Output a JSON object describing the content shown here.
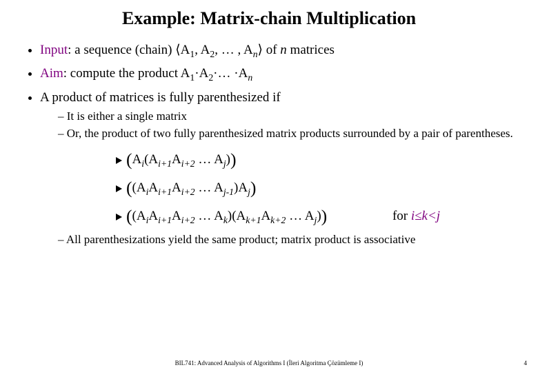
{
  "title_fontsize": 26,
  "body_fontsize": 19,
  "sub_fontsize": 17,
  "math_fontsize": 19,
  "footer_fontsize": 9,
  "keyword_color": "#7f007f",
  "text_color": "#000000",
  "background_color": "#ffffff",
  "title": "Example: Matrix-chain Multiplication",
  "bullets": {
    "b1_kw": "Input",
    "b1_rest_a": ": a sequence (chain) ⟨A",
    "b1_rest_b": ", A",
    "b1_rest_c": ", … , A",
    "b1_rest_d": "⟩ of ",
    "b1_rest_e": " matrices",
    "b2_kw": "Aim",
    "b2_rest_a": ": compute the product A",
    "b2_rest_b": "·A",
    "b2_rest_c": "·… ·A",
    "b3": "A product of matrices is fully parenthesized if",
    "b3_s1": "It is either a single matrix",
    "b3_s2": "Or, the product of two fully parenthesized matrix products surrounded by a pair of parentheses.",
    "b3_s3": "All parenthesizations yield the same product; matrix product is associative"
  },
  "math": {
    "for_label": "for ",
    "cond": "i≤k<j",
    "idx": {
      "one": "1",
      "two": "2",
      "n": "n",
      "i": "i",
      "ip1": "i+1",
      "ip2": "i+2",
      "j": "j",
      "jm1": "j-1",
      "k": "k",
      "kp1": "k+1",
      "kp2": "k+2"
    }
  },
  "footer": "BIL741: Advanced Analysis of Algorithms I (İleri Algoritma Çözümleme I)",
  "page": "4"
}
